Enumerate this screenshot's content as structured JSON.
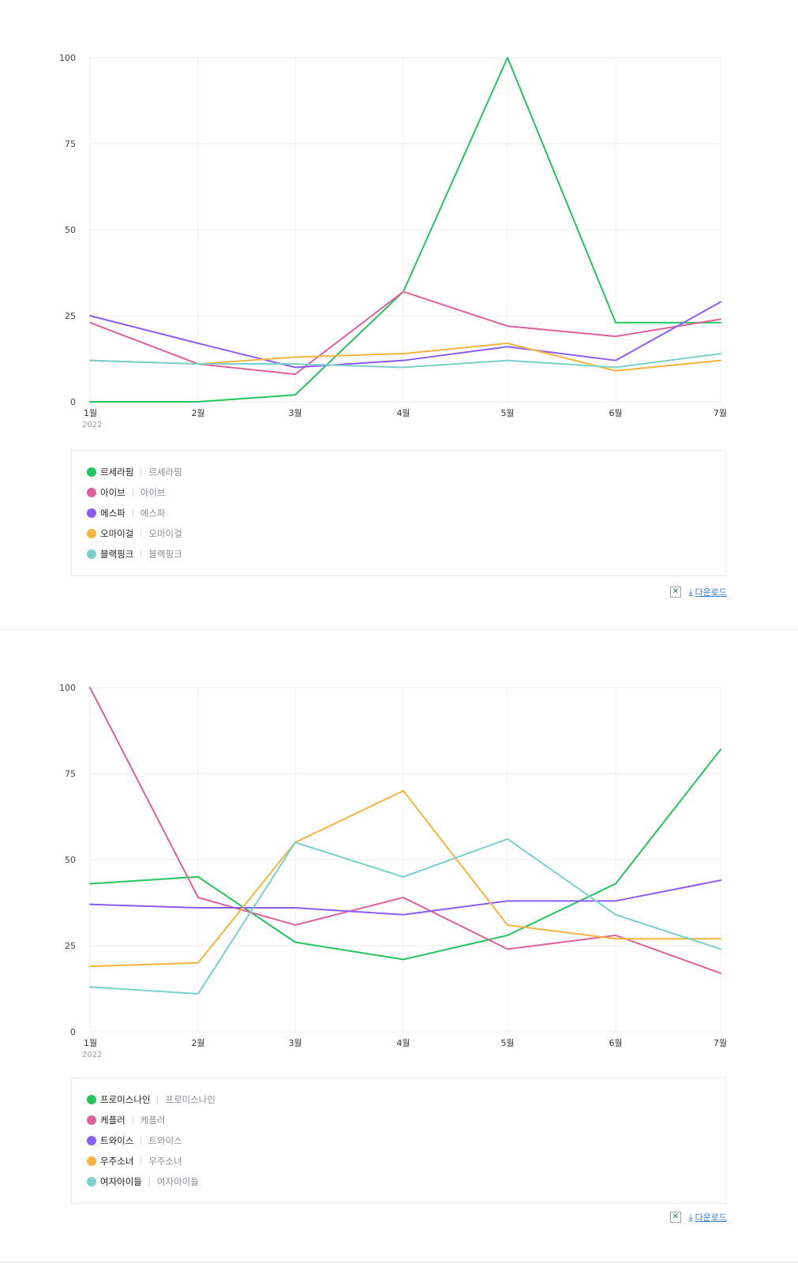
{
  "colors": {
    "green": "#22c55e",
    "pink": "#e0609a",
    "purple": "#8b5cf6",
    "orange": "#f4b53f",
    "teal": "#79d1c9"
  },
  "download_label": "다운로드",
  "chart_data": [
    {
      "type": "line",
      "categories": [
        "1월",
        "2월",
        "3월",
        "4월",
        "5월",
        "6월",
        "7월"
      ],
      "x_year_label": "2022",
      "ylim": [
        0,
        100
      ],
      "yticks": [
        "0",
        "25",
        "50",
        "75",
        "100"
      ],
      "grid": true,
      "legend_placement": "bottom",
      "series": [
        {
          "name": "르세라핌",
          "alias": "르세라핌",
          "color": "#22c55e",
          "values": [
            0,
            0,
            2,
            32,
            100,
            23,
            23
          ]
        },
        {
          "name": "아이브",
          "alias": "아이브",
          "color": "#e0609a",
          "values": [
            23,
            11,
            8,
            32,
            22,
            19,
            24
          ]
        },
        {
          "name": "에스파",
          "alias": "에스파",
          "color": "#8b5cf6",
          "values": [
            25,
            17,
            10,
            12,
            16,
            12,
            29
          ]
        },
        {
          "name": "오마이걸",
          "alias": "오마이걸",
          "color": "#f4b53f",
          "values": [
            12,
            11,
            13,
            14,
            17,
            9,
            12
          ]
        },
        {
          "name": "블랙핑크",
          "alias": "블랙핑크",
          "color": "#79d1c9",
          "values": [
            12,
            11,
            11,
            10,
            12,
            10,
            14
          ]
        }
      ]
    },
    {
      "type": "line",
      "categories": [
        "1월",
        "2월",
        "3월",
        "4월",
        "5월",
        "6월",
        "7월"
      ],
      "x_year_label": "2022",
      "ylim": [
        0,
        100
      ],
      "yticks": [
        "0",
        "25",
        "50",
        "75",
        "100"
      ],
      "grid": true,
      "legend_placement": "bottom",
      "series": [
        {
          "name": "프로미스나인",
          "alias": "프로미스나인",
          "color": "#22c55e",
          "values": [
            43,
            45,
            26,
            21,
            28,
            43,
            82
          ]
        },
        {
          "name": "케플러",
          "alias": "케플러",
          "color": "#e0609a",
          "values": [
            100,
            39,
            31,
            39,
            24,
            28,
            17
          ]
        },
        {
          "name": "트와이스",
          "alias": "트와이스",
          "color": "#8b5cf6",
          "values": [
            37,
            36,
            36,
            34,
            38,
            38,
            44
          ]
        },
        {
          "name": "우주소녀",
          "alias": "우주소녀",
          "color": "#f4b53f",
          "values": [
            19,
            20,
            55,
            70,
            31,
            27,
            27
          ]
        },
        {
          "name": "여자아이들",
          "alias": "여자아이들",
          "color": "#79d1c9",
          "values": [
            13,
            11,
            55,
            45,
            56,
            34,
            24
          ]
        }
      ]
    }
  ]
}
